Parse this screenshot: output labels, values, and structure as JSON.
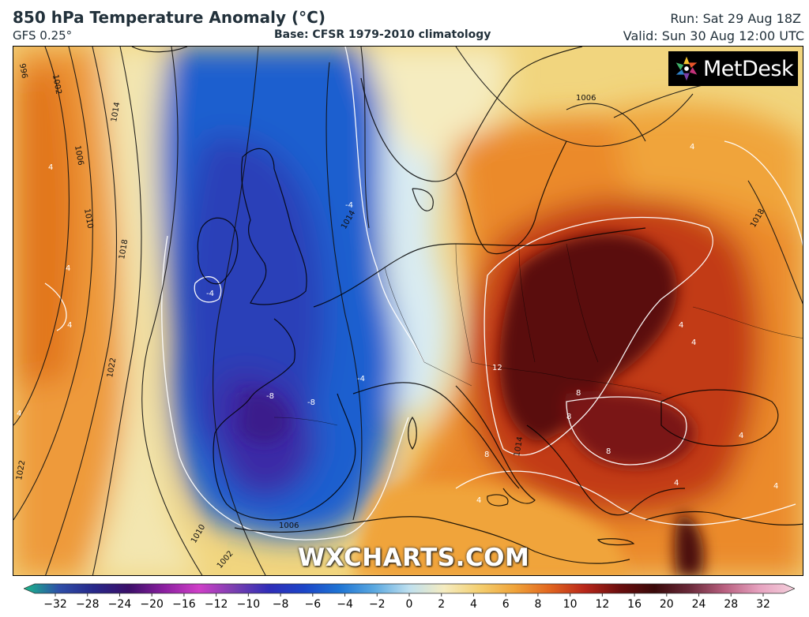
{
  "header": {
    "title": "850 hPa Temperature Anomaly (°C)",
    "model": "GFS 0.25°",
    "base": "Base: CFSR 1979-2010 climatology",
    "run": "Run: Sat 29 Aug 18Z",
    "valid": "Valid: Sun 30 Aug 12:00 UTC"
  },
  "logo": {
    "text": "MetDesk",
    "icon": "metdesk-logo-icon"
  },
  "watermark": "WXCHARTS.COM",
  "colorscale": {
    "ticks": [
      "−32",
      "−28",
      "−24",
      "−20",
      "−16",
      "−12",
      "−10",
      "−8",
      "−6",
      "−4",
      "−2",
      "0",
      "2",
      "4",
      "6",
      "8",
      "10",
      "12",
      "16",
      "20",
      "24",
      "28",
      "32"
    ],
    "colors": [
      "#19b98a",
      "#2e4fa8",
      "#27288a",
      "#3b0f69",
      "#8b1fa0",
      "#cf3fc8",
      "#7a3fb0",
      "#2f2db8",
      "#1c45c8",
      "#1e74d4",
      "#5aa8e0",
      "#bfe0ef",
      "#f5ecc0",
      "#f4cf70",
      "#f0a43a",
      "#e2661f",
      "#b9271a",
      "#6b0e0e",
      "#3a0a0a",
      "#6a2a3a",
      "#b96080",
      "#e7a3c0",
      "#f4d0dc"
    ]
  },
  "isobars": [
    "996",
    "1002",
    "1006",
    "1010",
    "1014",
    "1018",
    "1022",
    "1022",
    "1014",
    "1018",
    "1006",
    "1006",
    "1002",
    "1010",
    "1014"
  ],
  "anomaly_labels": [
    "4",
    "4",
    "4",
    "4",
    "-4",
    "-4",
    "-8",
    "-8",
    "-4",
    "4",
    "8",
    "8",
    "8",
    "8",
    "12",
    "4",
    "4",
    "4",
    "4",
    "4",
    "4"
  ]
}
